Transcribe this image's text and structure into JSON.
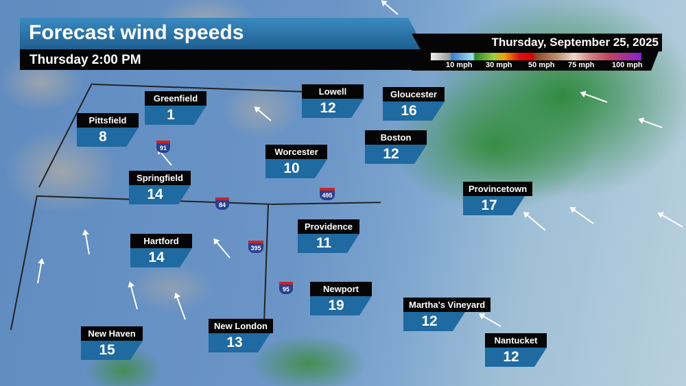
{
  "header": {
    "title": "Forecast wind speeds",
    "time": "Thursday 2:00 PM",
    "date": "Thursday, September 25, 2025"
  },
  "legend": {
    "unit_labels": [
      "10 mph",
      "30 mph",
      "50 mph",
      "75 mph",
      "100 mph"
    ],
    "colors": [
      "#999999",
      "#3a7fd0",
      "#2a8a2a",
      "#e01010",
      "#c09070",
      "#8a20d0"
    ]
  },
  "cities": [
    {
      "name": "Greenfield",
      "speed": "1"
    },
    {
      "name": "Pittsfield",
      "speed": "8"
    },
    {
      "name": "Lowell",
      "speed": "12"
    },
    {
      "name": "Gloucester",
      "speed": "16"
    },
    {
      "name": "Boston",
      "speed": "12"
    },
    {
      "name": "Worcester",
      "speed": "10"
    },
    {
      "name": "Springfield",
      "speed": "14"
    },
    {
      "name": "Providence",
      "speed": "11"
    },
    {
      "name": "Provincetown",
      "speed": "17"
    },
    {
      "name": "Hartford",
      "speed": "14"
    },
    {
      "name": "Newport",
      "speed": "19"
    },
    {
      "name": "Martha's Vineyard",
      "speed": "12"
    },
    {
      "name": "Nantucket",
      "speed": "12"
    },
    {
      "name": "New Haven",
      "speed": "15"
    },
    {
      "name": "New London",
      "speed": "13"
    }
  ],
  "interstates": [
    "91",
    "84",
    "495",
    "395",
    "95"
  ]
}
